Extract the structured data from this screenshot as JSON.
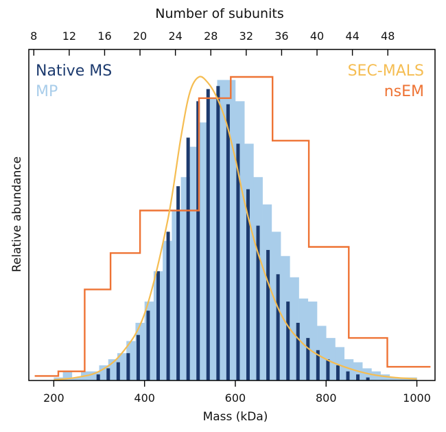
{
  "chart_data": {
    "type": "bar",
    "top_axis_title": "Number of subunits",
    "top_ticks": [
      "8",
      "12",
      "16",
      "20",
      "24",
      "28",
      "32",
      "36",
      "40",
      "44",
      "48"
    ],
    "xlabel": "Mass (kDa)",
    "ylabel": "Relative abundance",
    "x_ticks": [
      "200",
      "400",
      "600",
      "800",
      "1000"
    ],
    "xlim": [
      145,
      1040
    ],
    "ylim": [
      0,
      1
    ],
    "grid": false,
    "legend": [
      {
        "label": "Native MS",
        "color": "#1c3a6e",
        "placement": "top-left"
      },
      {
        "label": "MP",
        "color": "#a9cdea",
        "placement": "top-left"
      },
      {
        "label": "SEC-MALS",
        "color": "#f5bd52",
        "placement": "top-right"
      },
      {
        "label": "nsEM",
        "color": "#ee7334",
        "placement": "top-right"
      }
    ],
    "series": [
      {
        "name": "MP",
        "kind": "histogram",
        "color": "#a9cdea",
        "bin_width": 20,
        "x": [
          210,
          230,
          250,
          270,
          290,
          310,
          330,
          350,
          370,
          390,
          410,
          430,
          450,
          470,
          490,
          510,
          530,
          550,
          570,
          590,
          610,
          630,
          650,
          670,
          690,
          710,
          730,
          750,
          770,
          790,
          810,
          830,
          850,
          870,
          890,
          910,
          930,
          950,
          970,
          990
        ],
        "values": [
          0.01,
          0.03,
          0.01,
          0.03,
          0.03,
          0.05,
          0.07,
          0.09,
          0.13,
          0.19,
          0.26,
          0.36,
          0.46,
          0.56,
          0.67,
          0.77,
          0.85,
          0.93,
          0.99,
          0.99,
          0.92,
          0.78,
          0.67,
          0.58,
          0.49,
          0.41,
          0.34,
          0.27,
          0.26,
          0.18,
          0.14,
          0.11,
          0.07,
          0.06,
          0.04,
          0.03,
          0.02,
          0.01,
          0.01,
          0.01
        ]
      },
      {
        "name": "Native MS",
        "kind": "bars",
        "color": "#1c3a6e",
        "bar_width": 5,
        "x": [
          298,
          320,
          342,
          364,
          386,
          408,
          430,
          452,
          474,
          496,
          518,
          540,
          562,
          584,
          606,
          628,
          650,
          672,
          694,
          716,
          738,
          760,
          782,
          804,
          826,
          848,
          870,
          892
        ],
        "values": [
          0.02,
          0.04,
          0.06,
          0.09,
          0.15,
          0.23,
          0.36,
          0.49,
          0.64,
          0.8,
          0.92,
          0.96,
          0.97,
          0.91,
          0.78,
          0.63,
          0.51,
          0.43,
          0.35,
          0.26,
          0.19,
          0.14,
          0.1,
          0.07,
          0.05,
          0.03,
          0.02,
          0.01
        ]
      },
      {
        "name": "nsEM",
        "kind": "step",
        "color": "#ee7334",
        "edges": [
          158,
          210,
          268,
          325,
          390,
          445,
          520,
          590,
          682,
          762,
          850,
          935,
          1030
        ],
        "values": [
          0.015,
          0.03,
          0.3,
          0.42,
          0.56,
          0.56,
          0.93,
          1.0,
          0.79,
          0.44,
          0.14,
          0.045
        ]
      },
      {
        "name": "SEC-MALS",
        "kind": "curve",
        "color": "#f5bd52",
        "x": [
          200,
          250,
          300,
          350,
          400,
          450,
          480,
          500,
          520,
          540,
          560,
          580,
          600,
          620,
          650,
          700,
          750,
          800,
          850,
          900,
          950,
          1000
        ],
        "values": [
          0.002,
          0.01,
          0.03,
          0.09,
          0.22,
          0.52,
          0.8,
          0.95,
          1.0,
          0.98,
          0.93,
          0.85,
          0.73,
          0.59,
          0.42,
          0.22,
          0.12,
          0.07,
          0.04,
          0.02,
          0.01,
          0.005
        ]
      }
    ]
  }
}
